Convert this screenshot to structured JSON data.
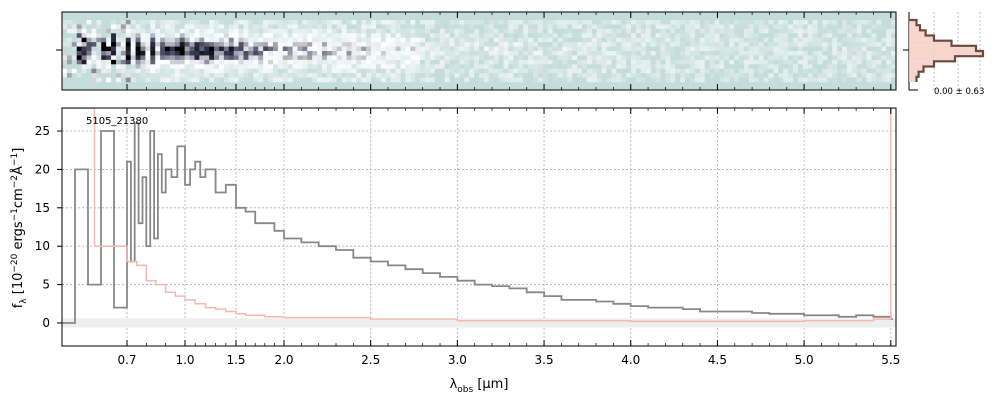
{
  "chart_data": [
    {
      "type": "heatmap",
      "panel": "2d-spectrum",
      "colormap": [
        "#c4dcda",
        "#ffffff",
        "#3a3a55",
        "#000000"
      ],
      "profile_label": "0.00 ± 0.63",
      "profile": {
        "rows": [
          0.05,
          0.1,
          0.18,
          0.3,
          0.55,
          0.9,
          1.0,
          0.6,
          0.3,
          0.15,
          0.08,
          0.05
        ],
        "colors": {
          "fill": "#f6c9c2",
          "line": "#6b4a3d"
        }
      }
    },
    {
      "type": "line",
      "panel": "1d-spectrum",
      "id_label": "5105_21380",
      "xlabel": "λ_obs [μm]",
      "ylabel": "f_λ [10^-20 ergs^-1 cm^-2 Å^-1]",
      "xlim": [
        0.6,
        5.53
      ],
      "ylim": [
        -3,
        28
      ],
      "x_axis_scale": "piecewise: compressed below 1.5 μm",
      "x_ticks": [
        0.7,
        1.0,
        1.5,
        2.0,
        2.5,
        3.0,
        3.5,
        4.0,
        4.5,
        5.0,
        5.5
      ],
      "x_tick_labels": [
        "0.7",
        "1.0",
        "1.5",
        "2.0",
        "2.5",
        "3.0",
        "3.5",
        "4.0",
        "4.5",
        "5.0",
        "5.5"
      ],
      "y_ticks": [
        0,
        5,
        10,
        15,
        20,
        25
      ],
      "y_tick_labels": [
        "0",
        "5",
        "10",
        "15",
        "20",
        "25"
      ],
      "grid": true,
      "colors": {
        "flux": "#888888",
        "error": "#f4b9b3",
        "zero_band": "#eeeeee",
        "grid": "#b0b0b0"
      },
      "series": [
        {
          "role": "flux",
          "x": [
            0.6,
            0.62,
            0.64,
            0.66,
            0.68,
            0.7,
            0.72,
            0.74,
            0.76,
            0.78,
            0.8,
            0.82,
            0.84,
            0.86,
            0.88,
            0.9,
            0.93,
            0.96,
            1.0,
            1.05,
            1.1,
            1.15,
            1.2,
            1.3,
            1.4,
            1.5,
            1.6,
            1.7,
            1.8,
            1.9,
            2.0,
            2.1,
            2.2,
            2.3,
            2.4,
            2.5,
            2.6,
            2.7,
            2.8,
            2.9,
            3.0,
            3.1,
            3.2,
            3.3,
            3.4,
            3.5,
            3.6,
            3.7,
            3.8,
            3.9,
            4.0,
            4.1,
            4.2,
            4.3,
            4.4,
            4.5,
            4.6,
            4.7,
            4.8,
            4.9,
            5.0,
            5.1,
            5.2,
            5.3,
            5.4,
            5.5
          ],
          "y": [
            0,
            20,
            5,
            25,
            2,
            21,
            8,
            26,
            13,
            19,
            10,
            25,
            11,
            22,
            17,
            20,
            19,
            23,
            18,
            20,
            21,
            19,
            20,
            17,
            18,
            15,
            14.5,
            13,
            13,
            12,
            11,
            10.5,
            10,
            9.5,
            8.5,
            8.0,
            7.5,
            7.0,
            6.5,
            6.0,
            5.5,
            5.0,
            4.8,
            4.5,
            4.0,
            3.5,
            3.0,
            3.0,
            2.8,
            2.5,
            2.2,
            2.0,
            2.0,
            1.8,
            1.5,
            1.5,
            1.5,
            1.3,
            1.2,
            1.2,
            1.0,
            1.0,
            0.8,
            1.0,
            0.8,
            0.5
          ]
        },
        {
          "role": "error",
          "x": [
            0.6,
            0.65,
            0.7,
            0.75,
            0.8,
            0.85,
            0.9,
            0.95,
            1.0,
            1.1,
            1.2,
            1.3,
            1.4,
            1.5,
            1.6,
            1.7,
            1.8,
            2.0,
            2.5,
            3.0,
            3.5,
            4.0,
            4.5,
            5.0,
            5.4,
            5.5
          ],
          "y": [
            28,
            10,
            8,
            7.5,
            5.5,
            5.0,
            4.0,
            3.5,
            3.0,
            2.5,
            2.0,
            1.8,
            1.5,
            1.2,
            1.0,
            1.0,
            0.8,
            0.7,
            0.5,
            0.3,
            0.3,
            0.2,
            0.2,
            0.3,
            0.5,
            28
          ]
        }
      ]
    }
  ]
}
